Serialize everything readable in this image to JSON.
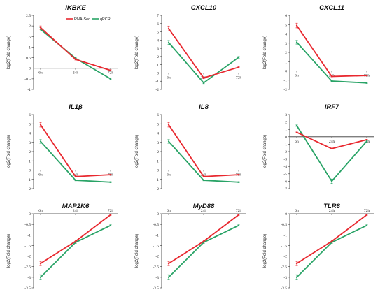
{
  "colors": {
    "rnaseq": "#e8282f",
    "qpcr": "#28a366",
    "axis": "#333333"
  },
  "chart_data": [
    {
      "type": "line",
      "title": "IKBKE",
      "categories": [
        "6h",
        "24h",
        "72h"
      ],
      "ylabel": "log2(Fold change)",
      "ylim": [
        -1,
        2.5
      ],
      "yticks": [
        "-1",
        "-0.5",
        "0",
        "0.5",
        "1",
        "1.5",
        "2",
        "2.5"
      ],
      "series": [
        {
          "name": "RNA-Seq",
          "values": [
            1.92,
            0.42,
            -0.1
          ],
          "err": [
            0.08,
            0.03,
            0.03
          ]
        },
        {
          "name": "qPCR",
          "values": [
            1.84,
            0.47,
            -0.5
          ],
          "err": [
            0.08,
            0.03,
            0.03
          ]
        }
      ],
      "legend": "top-right"
    },
    {
      "type": "line",
      "title": "CXCL10",
      "categories": [
        "6h",
        "24h",
        "72h"
      ],
      "ylabel": "log2(Fold change)",
      "ylim": [
        -2,
        7
      ],
      "yticks": [
        "-2",
        "-1",
        "0",
        "1",
        "2",
        "3",
        "4",
        "5",
        "6",
        "7"
      ],
      "series": [
        {
          "name": "RNA-Seq",
          "values": [
            5.4,
            -0.6,
            0.7
          ],
          "err": [
            0.3,
            0.1,
            0.05
          ]
        },
        {
          "name": "qPCR",
          "values": [
            3.7,
            -1.2,
            1.9
          ],
          "err": [
            0.25,
            0.1,
            0.1
          ]
        }
      ]
    },
    {
      "type": "line",
      "title": "CXCL11",
      "categories": [
        "6h",
        "24h",
        "72h"
      ],
      "ylabel": "log2(Fold change)",
      "ylim": [
        -2,
        6
      ],
      "yticks": [
        "-2",
        "-1",
        "0",
        "1",
        "2",
        "3",
        "4",
        "5",
        "6"
      ],
      "series": [
        {
          "name": "RNA-Seq",
          "values": [
            4.9,
            -0.6,
            -0.5
          ],
          "err": [
            0.25,
            0.05,
            0.05
          ]
        },
        {
          "name": "qPCR",
          "values": [
            3.1,
            -1.1,
            -1.3
          ],
          "err": [
            0.2,
            0.05,
            0.05
          ]
        }
      ]
    },
    {
      "type": "line",
      "title": "IL1β",
      "categories": [
        "6h",
        "24h",
        "72h"
      ],
      "ylabel": "log2(Fold change)",
      "ylim": [
        -2,
        6
      ],
      "yticks": [
        "-2",
        "-1",
        "0",
        "1",
        "2",
        "3",
        "4",
        "5",
        "6"
      ],
      "series": [
        {
          "name": "RNA-Seq",
          "values": [
            4.9,
            -0.7,
            -0.5
          ],
          "err": [
            0.25,
            0.05,
            0.05
          ]
        },
        {
          "name": "qPCR",
          "values": [
            3.1,
            -1.1,
            -1.3
          ],
          "err": [
            0.2,
            0.05,
            0.05
          ]
        }
      ]
    },
    {
      "type": "line",
      "title": "IL8",
      "categories": [
        "6h",
        "24h",
        "72h"
      ],
      "ylabel": "log2(Fold change)",
      "ylim": [
        -2,
        6
      ],
      "yticks": [
        "-2",
        "-1",
        "0",
        "1",
        "2",
        "3",
        "4",
        "5",
        "6"
      ],
      "series": [
        {
          "name": "RNA-Seq",
          "values": [
            4.9,
            -0.7,
            -0.5
          ],
          "err": [
            0.25,
            0.05,
            0.05
          ]
        },
        {
          "name": "qPCR",
          "values": [
            3.1,
            -1.1,
            -1.3
          ],
          "err": [
            0.2,
            0.05,
            0.05
          ]
        }
      ]
    },
    {
      "type": "line",
      "title": "IRF7",
      "categories": [
        "6h",
        "24h",
        "72h"
      ],
      "ylabel": "log2(Fold change)",
      "ylim": [
        -7,
        3
      ],
      "yticks": [
        "-7",
        "-6",
        "-5",
        "-4",
        "-3",
        "-2",
        "-1",
        "0",
        "1",
        "2",
        "3"
      ],
      "series": [
        {
          "name": "RNA-Seq",
          "values": [
            0.6,
            -1.6,
            -0.4
          ],
          "err": [
            0.05,
            0.05,
            0.05
          ]
        },
        {
          "name": "qPCR",
          "values": [
            1.5,
            -6.0,
            -0.6
          ],
          "err": [
            0.1,
            0.3,
            0.1
          ]
        }
      ]
    },
    {
      "type": "line",
      "title": "MAP2K6",
      "categories": [
        "6h",
        "24h",
        "72h"
      ],
      "ylabel": "log2(Fold change)",
      "ylim": [
        -3.5,
        0
      ],
      "yticks": [
        "-3.5",
        "-3",
        "-2.5",
        "-2",
        "-1.5",
        "-1",
        "-0.5",
        "0"
      ],
      "series": [
        {
          "name": "RNA-Seq",
          "values": [
            -2.35,
            -1.3,
            -0.05
          ],
          "err": [
            0.1,
            0.05,
            0.02
          ]
        },
        {
          "name": "qPCR",
          "values": [
            -3.0,
            -1.35,
            -0.55
          ],
          "err": [
            0.12,
            0.05,
            0.03
          ]
        }
      ]
    },
    {
      "type": "line",
      "title": "MyD88",
      "categories": [
        "6h",
        "24h",
        "72h"
      ],
      "ylabel": "log2(Fold change)",
      "ylim": [
        -3.5,
        0
      ],
      "yticks": [
        "-3.5",
        "-3",
        "-2.5",
        "-2",
        "-1.5",
        "-1",
        "-0.5",
        "0"
      ],
      "series": [
        {
          "name": "RNA-Seq",
          "values": [
            -2.35,
            -1.3,
            -0.05
          ],
          "err": [
            0.1,
            0.05,
            0.02
          ]
        },
        {
          "name": "qPCR",
          "values": [
            -3.0,
            -1.35,
            -0.55
          ],
          "err": [
            0.12,
            0.05,
            0.03
          ]
        }
      ]
    },
    {
      "type": "line",
      "title": "TLR8",
      "categories": [
        "6h",
        "24h",
        "72h"
      ],
      "ylabel": "log2(Fold change)",
      "ylim": [
        -3.5,
        0
      ],
      "yticks": [
        "-3.5",
        "-3",
        "-2.5",
        "-2",
        "-1.5",
        "-1",
        "-0.5",
        "0"
      ],
      "series": [
        {
          "name": "RNA-Seq",
          "values": [
            -2.35,
            -1.3,
            -0.05
          ],
          "err": [
            0.1,
            0.05,
            0.02
          ]
        },
        {
          "name": "qPCR",
          "values": [
            -3.0,
            -1.35,
            -0.55
          ],
          "err": [
            0.12,
            0.05,
            0.03
          ]
        }
      ]
    }
  ]
}
